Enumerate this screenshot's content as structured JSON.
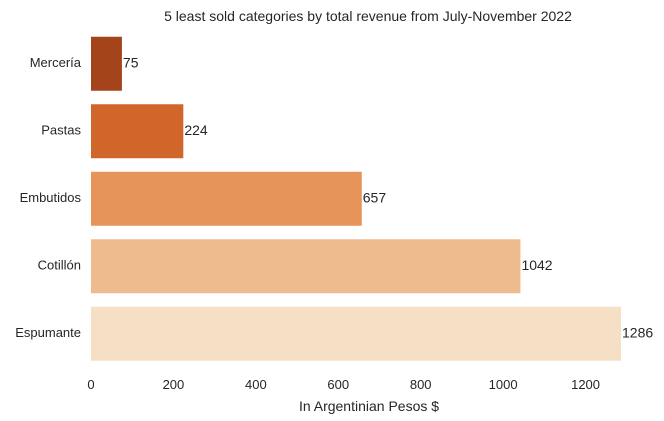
{
  "chart_data": {
    "type": "bar",
    "orientation": "horizontal",
    "title": "5 least sold categories by total revenue from July-November 2022",
    "xlabel": "In Argentinian Pesos $",
    "ylabel": "",
    "categories": [
      "Mercería",
      "Pastas",
      "Embutidos",
      "Cotillón",
      "Espumante"
    ],
    "values": [
      75,
      224,
      657,
      1042,
      1286
    ],
    "data_labels": [
      "75",
      "224",
      "657",
      "1042",
      "1286"
    ],
    "colors": [
      "#a3441a",
      "#d1662a",
      "#e6945a",
      "#eebb8e",
      "#f5dfc5"
    ],
    "xlim": [
      0,
      1286
    ],
    "xticks": [
      0,
      200,
      400,
      600,
      800,
      1000,
      1200
    ],
    "xtick_labels": [
      "0",
      "200",
      "400",
      "600",
      "800",
      "1000",
      "1200"
    ],
    "grid": false,
    "legend": "none"
  }
}
